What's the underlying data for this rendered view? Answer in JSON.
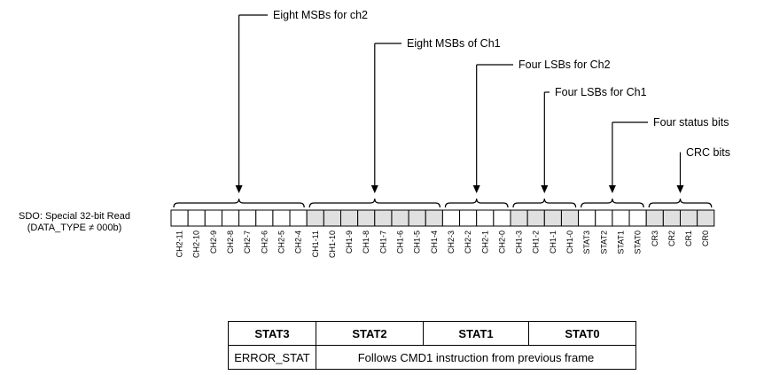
{
  "sdo_label": [
    "SDO: Special 32-bit Read",
    "(DATA_TYPE ≠ 000b)"
  ],
  "bits": [
    "CH2-11",
    "CH2-10",
    "CH2-9",
    "CH2-8",
    "CH2-7",
    "CH2-6",
    "CH2-5",
    "CH2-4",
    "CH1-11",
    "CH1-10",
    "CH1-9",
    "CH1-8",
    "CH1-7",
    "CH1-6",
    "CH1-5",
    "CH1-4",
    "CH2-3",
    "CH2-2",
    "CH2-1",
    "CH2-0",
    "CH1-3",
    "CH1-2",
    "CH1-1",
    "CH1-0",
    "STAT3",
    "STAT2",
    "STAT1",
    "STAT0",
    "CR3",
    "CR2",
    "CR1",
    "CR0"
  ],
  "colors": {
    "white_cell": "#ffffff",
    "shaded_cell": "#e0e0e0",
    "line": "#000000"
  },
  "groups": [
    {
      "label": "Eight MSBs for ch2",
      "start": 0,
      "end": 7,
      "shaded": false
    },
    {
      "label": "Eight MSBs of Ch1",
      "start": 8,
      "end": 15,
      "shaded": true
    },
    {
      "label": "Four LSBs for Ch2",
      "start": 16,
      "end": 19,
      "shaded": false
    },
    {
      "label": "Four LSBs for Ch1",
      "start": 20,
      "end": 23,
      "shaded": true
    },
    {
      "label": "Four status bits",
      "start": 24,
      "end": 27,
      "shaded": false
    },
    {
      "label": "CRC bits",
      "start": 28,
      "end": 31,
      "shaded": true
    }
  ],
  "status_table": {
    "headers": [
      "STAT3",
      "STAT2",
      "STAT1",
      "STAT0"
    ],
    "row": {
      "stat3": "ERROR_STAT",
      "others": "Follows CMD1 instruction from previous frame"
    }
  }
}
